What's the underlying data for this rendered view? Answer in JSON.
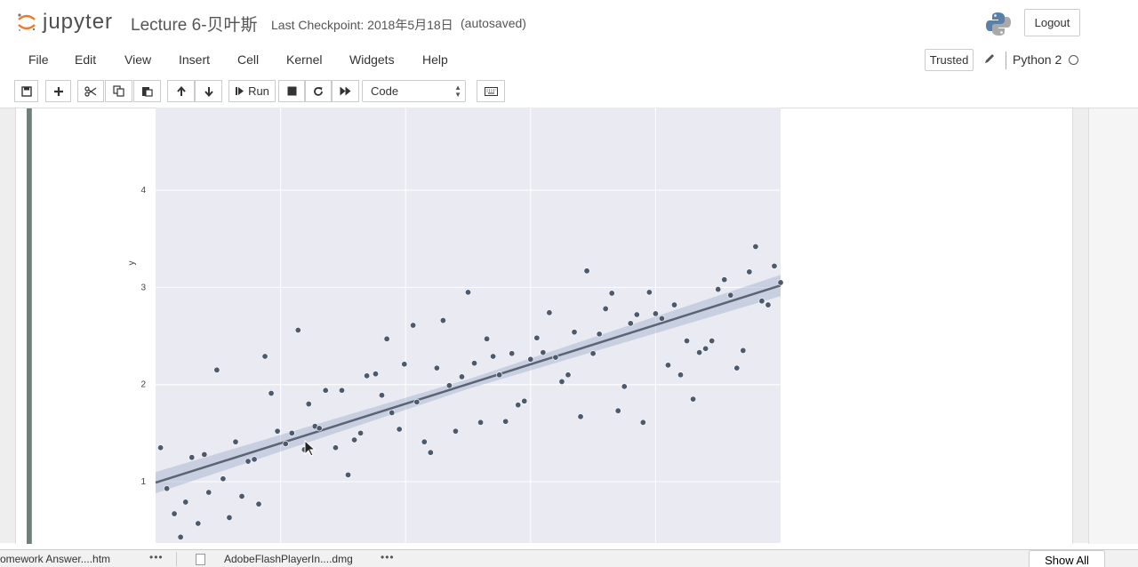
{
  "header": {
    "logo_text": "jupyter",
    "notebook_title": "Lecture 6-贝叶斯",
    "checkpoint": "Last Checkpoint: 2018年5月18日",
    "autosave": "(autosaved)",
    "logout_label": "Logout"
  },
  "menubar": {
    "items": [
      "File",
      "Edit",
      "View",
      "Insert",
      "Cell",
      "Kernel",
      "Widgets",
      "Help"
    ],
    "trusted_label": "Trusted",
    "kernel_name": "Python 2"
  },
  "toolbar": {
    "run_label": "Run",
    "cell_type": "Code"
  },
  "download_bar": {
    "item1": "omework Answer....htm",
    "item2": "AdobeFlashPlayerIn....dmg",
    "more": "•••",
    "show_all_label": "Show All"
  },
  "chart_data": {
    "type": "scatter",
    "title": "",
    "xlabel": "",
    "ylabel": "y",
    "y_ticks": [
      "1",
      "2",
      "3",
      "4"
    ],
    "ylim": [
      0.4,
      4.8
    ],
    "xlim": [
      0,
      1
    ],
    "grid": true,
    "regression_line": {
      "x": [
        0,
        1
      ],
      "y": [
        0.99,
        3.02
      ]
    },
    "points": {
      "x": [
        0.008,
        0.018,
        0.03,
        0.04,
        0.048,
        0.058,
        0.068,
        0.078,
        0.085,
        0.098,
        0.108,
        0.118,
        0.128,
        0.138,
        0.148,
        0.158,
        0.165,
        0.175,
        0.185,
        0.195,
        0.208,
        0.218,
        0.228,
        0.238,
        0.245,
        0.255,
        0.262,
        0.272,
        0.288,
        0.298,
        0.308,
        0.318,
        0.328,
        0.338,
        0.352,
        0.362,
        0.37,
        0.378,
        0.39,
        0.398,
        0.412,
        0.418,
        0.43,
        0.44,
        0.45,
        0.46,
        0.47,
        0.48,
        0.49,
        0.5,
        0.51,
        0.52,
        0.53,
        0.54,
        0.55,
        0.56,
        0.57,
        0.58,
        0.59,
        0.6,
        0.61,
        0.62,
        0.63,
        0.64,
        0.65,
        0.66,
        0.67,
        0.68,
        0.69,
        0.7,
        0.71,
        0.72,
        0.73,
        0.74,
        0.75,
        0.76,
        0.77,
        0.78,
        0.79,
        0.8,
        0.81,
        0.82,
        0.83,
        0.84,
        0.85,
        0.86,
        0.87,
        0.88,
        0.89,
        0.9,
        0.91,
        0.92,
        0.93,
        0.94,
        0.95,
        0.96,
        0.97,
        0.98,
        0.99,
        1.0
      ],
      "y": [
        1.35,
        0.93,
        0.67,
        0.43,
        0.79,
        1.25,
        0.57,
        1.28,
        0.89,
        2.15,
        1.03,
        0.63,
        1.41,
        0.85,
        1.21,
        1.23,
        0.77,
        2.29,
        1.91,
        1.52,
        1.39,
        1.5,
        2.56,
        1.33,
        1.8,
        1.57,
        1.55,
        1.94,
        1.35,
        1.94,
        1.07,
        1.43,
        1.5,
        2.09,
        2.11,
        1.89,
        2.47,
        1.71,
        1.54,
        2.21,
        2.61,
        1.82,
        1.41,
        1.3,
        2.17,
        2.66,
        1.99,
        1.52,
        2.08,
        2.95,
        2.22,
        1.61,
        2.47,
        2.29,
        2.1,
        1.62,
        2.32,
        1.79,
        1.83,
        2.26,
        2.48,
        2.33,
        2.74,
        2.28,
        2.03,
        2.1,
        2.54,
        1.67,
        3.17,
        2.32,
        2.52,
        2.78,
        2.94,
        1.73,
        1.98,
        2.63,
        2.72,
        1.61,
        2.95,
        2.73,
        2.68,
        2.2,
        2.82,
        2.1,
        2.45,
        1.85,
        2.33,
        2.37,
        2.45,
        2.98,
        3.08,
        2.92,
        2.17,
        2.35,
        3.16,
        3.42,
        2.86,
        2.82,
        3.22,
        3.05
      ]
    }
  }
}
